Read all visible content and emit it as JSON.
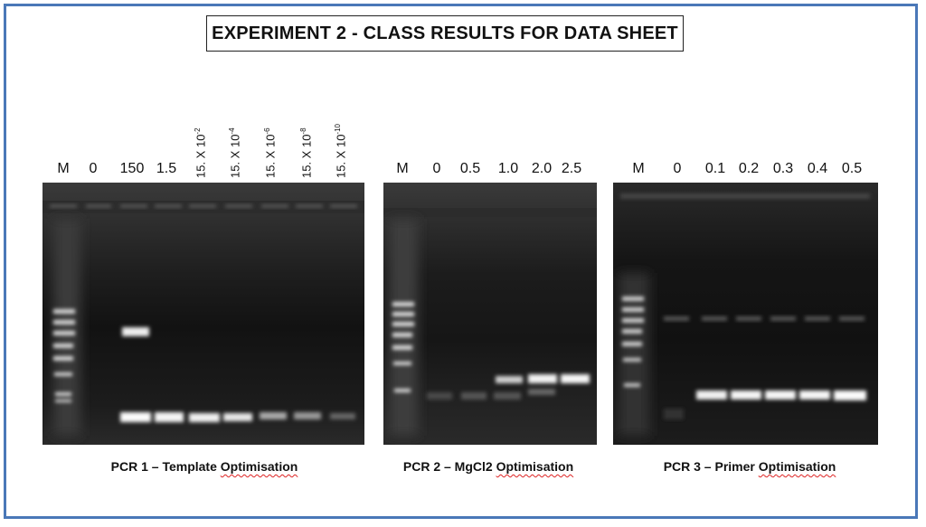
{
  "title": "EXPERIMENT 2 - CLASS RESULTS FOR DATA SHEET",
  "gels": [
    {
      "caption_prefix": "PCR 1 – Template ",
      "caption_suffix": "Optimisation",
      "labels": [
        "M",
        "0",
        "150",
        "1.5"
      ],
      "vertical_labels": [
        {
          "base": "15. X 10",
          "exp": "-2"
        },
        {
          "base": "15. X 10",
          "exp": "-4"
        },
        {
          "base": "15. X 10",
          "exp": "-6"
        },
        {
          "base": "15. X 10",
          "exp": "-8"
        },
        {
          "base": "15. X 10",
          "exp": "-10"
        }
      ]
    },
    {
      "caption_prefix": "PCR 2 – MgCl2 ",
      "caption_suffix": "Optimisation",
      "labels": [
        "M",
        "0",
        "0.5",
        "1.0",
        "2.0",
        "2.5"
      ]
    },
    {
      "caption_prefix": "PCR 3 – Primer ",
      "caption_suffix": "Optimisation",
      "labels": [
        "M",
        "0",
        "0.1",
        "0.2",
        "0.3",
        "0.4",
        "0.5"
      ]
    }
  ]
}
